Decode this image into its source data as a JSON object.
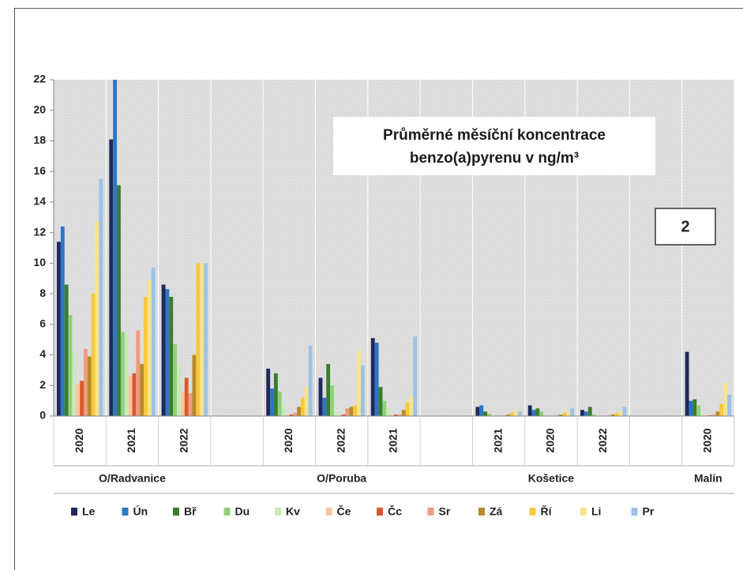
{
  "chart_data": {
    "type": "bar",
    "title": [
      "Průměrné měsíční koncentrace",
      "benzo(a)pyrenu v ng/m³"
    ],
    "annotation": "2",
    "categories": [
      "2020",
      "2021",
      "2022",
      null,
      "2020",
      "2022",
      "2021",
      null,
      "2021",
      "2020",
      "2022",
      null,
      "2020"
    ],
    "groups": [
      {
        "label": "O/Radvanice",
        "columns": [
          0,
          2
        ]
      },
      {
        "label": "O/Poruba",
        "columns": [
          4,
          6
        ]
      },
      {
        "label": "Košetice",
        "columns": [
          8,
          10
        ]
      },
      {
        "label": "Malín",
        "columns": [
          12,
          12
        ]
      }
    ],
    "ylim": [
      0,
      22
    ],
    "yticks": [
      0,
      2,
      4,
      6,
      8,
      10,
      12,
      14,
      16,
      18,
      20,
      22
    ],
    "legend": "bottom",
    "series": [
      {
        "name": "Le",
        "color": "#1f2a5a",
        "values": [
          11.4,
          18.1,
          8.6,
          null,
          3.1,
          2.5,
          5.1,
          null,
          0.6,
          0.7,
          0.4,
          null,
          4.2
        ]
      },
      {
        "name": "Ún",
        "color": "#2e75c8",
        "values": [
          12.4,
          22,
          8.3,
          null,
          1.8,
          1.2,
          4.8,
          null,
          0.7,
          0.4,
          0.3,
          null,
          1.0
        ]
      },
      {
        "name": "Bř",
        "color": "#3a7d2c",
        "values": [
          8.6,
          15.1,
          7.8,
          null,
          2.8,
          3.4,
          1.9,
          null,
          0.3,
          0.5,
          0.6,
          null,
          1.1
        ]
      },
      {
        "name": "Du",
        "color": "#8fd17a",
        "values": [
          6.6,
          5.5,
          4.7,
          null,
          1.6,
          2.0,
          1.0,
          null,
          0.15,
          0.3,
          0.1,
          null,
          0.7
        ]
      },
      {
        "name": "Kv",
        "color": "#c8eab8",
        "values": [
          4.2,
          5.4,
          3.3,
          null,
          0.7,
          0.3,
          0.5,
          null,
          0.05,
          0.05,
          0.05,
          null,
          0.2
        ]
      },
      {
        "name": "Če",
        "color": "#f6c4a0",
        "values": [
          2.1,
          2.6,
          1.6,
          null,
          0.1,
          0.05,
          0.05,
          null,
          0.02,
          0.02,
          0.02,
          null,
          0.05
        ]
      },
      {
        "name": "Čc",
        "color": "#d85a2a",
        "values": [
          2.3,
          2.8,
          2.5,
          null,
          0.1,
          0.1,
          0.1,
          null,
          0.02,
          0.02,
          0.02,
          null,
          0.05
        ]
      },
      {
        "name": "Sr",
        "color": "#f09a80",
        "values": [
          4.4,
          5.6,
          1.5,
          null,
          0.2,
          0.5,
          0.1,
          null,
          0.05,
          0.05,
          0.05,
          null,
          0.1
        ]
      },
      {
        "name": "Zá",
        "color": "#b88a2a",
        "values": [
          3.9,
          3.4,
          4.0,
          null,
          0.6,
          0.6,
          0.4,
          null,
          0.1,
          0.1,
          0.1,
          null,
          0.3
        ]
      },
      {
        "name": "Ří",
        "color": "#f7c83a",
        "values": [
          8.0,
          7.8,
          10.0,
          null,
          1.2,
          0.7,
          0.9,
          null,
          0.2,
          0.2,
          0.2,
          null,
          0.8
        ]
      },
      {
        "name": "Li",
        "color": "#fbe38a",
        "values": [
          12.7,
          8.9,
          10.0,
          null,
          1.9,
          4.3,
          1.3,
          null,
          0.3,
          0.3,
          0.3,
          null,
          2.2
        ]
      },
      {
        "name": "Pr",
        "color": "#9cc3e6",
        "values": [
          15.5,
          9.7,
          10.0,
          null,
          4.6,
          3.3,
          5.2,
          null,
          0.3,
          0.5,
          0.6,
          null,
          1.4
        ]
      }
    ]
  }
}
